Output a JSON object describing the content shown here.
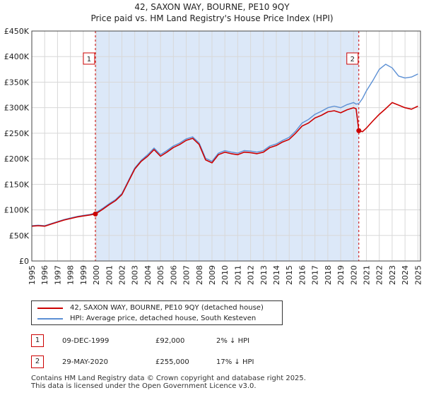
{
  "title_line1": "42, SAXON WAY, BOURNE, PE10 9QY",
  "title_line2": "Price paid vs. HM Land Registry's House Price Index (HPI)",
  "chart_data": {
    "type": "line",
    "title": "42, SAXON WAY, BOURNE, PE10 9QY",
    "subtitle": "Price paid vs. HM Land Registry's House Price Index (HPI)",
    "xlabel": "",
    "ylabel": "",
    "xlim": [
      1995,
      2025.2
    ],
    "ylim": [
      0,
      450000
    ],
    "x_ticks": [
      1995,
      1996,
      1997,
      1998,
      1999,
      2000,
      2001,
      2002,
      2003,
      2004,
      2005,
      2006,
      2007,
      2008,
      2009,
      2010,
      2011,
      2012,
      2013,
      2014,
      2015,
      2016,
      2017,
      2018,
      2019,
      2020,
      2021,
      2022,
      2023,
      2024,
      2025
    ],
    "y_ticks": [
      0,
      50000,
      100000,
      150000,
      200000,
      250000,
      300000,
      350000,
      400000,
      450000
    ],
    "y_tick_labels": [
      "£0",
      "£50K",
      "£100K",
      "£150K",
      "£200K",
      "£250K",
      "£300K",
      "£350K",
      "£400K",
      "£450K"
    ],
    "colors": {
      "property": "#cc0000",
      "hpi": "#5b8fd4",
      "shade": "#dce8f8",
      "marker_box": "#cc0000",
      "vline": "#cc0000"
    },
    "series": [
      {
        "name": "42, SAXON WAY, BOURNE, PE10 9QY (detached house)",
        "color": "#cc0000",
        "x": [
          1995.0,
          1995.5,
          1996.0,
          1996.5,
          1997.0,
          1997.5,
          1998.0,
          1998.5,
          1999.0,
          1999.5,
          1999.94,
          2000.5,
          2001.0,
          2001.5,
          2002.0,
          2002.5,
          2003.0,
          2003.5,
          2004.0,
          2004.5,
          2005.0,
          2005.5,
          2006.0,
          2006.5,
          2007.0,
          2007.5,
          2008.0,
          2008.5,
          2009.0,
          2009.5,
          2010.0,
          2010.5,
          2011.0,
          2011.5,
          2012.0,
          2012.5,
          2013.0,
          2013.5,
          2014.0,
          2014.5,
          2015.0,
          2015.5,
          2016.0,
          2016.5,
          2017.0,
          2017.5,
          2018.0,
          2018.5,
          2019.0,
          2019.5,
          2020.0,
          2020.2,
          2020.41,
          2020.7,
          2021.0,
          2021.5,
          2022.0,
          2022.5,
          2023.0,
          2023.5,
          2024.0,
          2024.5,
          2025.0
        ],
        "values": [
          68000,
          69000,
          68000,
          72000,
          76000,
          80000,
          83000,
          86000,
          88000,
          90000,
          92000,
          101000,
          110000,
          118000,
          130000,
          155000,
          180000,
          195000,
          205000,
          218000,
          205000,
          213000,
          222000,
          228000,
          236000,
          240000,
          228000,
          198000,
          192000,
          208000,
          213000,
          210000,
          208000,
          213000,
          212000,
          210000,
          213000,
          222000,
          226000,
          233000,
          238000,
          250000,
          264000,
          270000,
          280000,
          285000,
          292000,
          294000,
          290000,
          296000,
          300000,
          298000,
          255000,
          253000,
          260000,
          274000,
          287000,
          298000,
          310000,
          305000,
          300000,
          297000,
          303000
        ]
      },
      {
        "name": "HPI: Average price, detached house, South Kesteven",
        "color": "#5b8fd4",
        "x": [
          1995.0,
          1995.5,
          1996.0,
          1996.5,
          1997.0,
          1997.5,
          1998.0,
          1998.5,
          1999.0,
          1999.5,
          1999.94,
          2000.5,
          2001.0,
          2001.5,
          2002.0,
          2002.5,
          2003.0,
          2003.5,
          2004.0,
          2004.5,
          2005.0,
          2005.5,
          2006.0,
          2006.5,
          2007.0,
          2007.5,
          2008.0,
          2008.5,
          2009.0,
          2009.5,
          2010.0,
          2010.5,
          2011.0,
          2011.5,
          2012.0,
          2012.5,
          2013.0,
          2013.5,
          2014.0,
          2014.5,
          2015.0,
          2015.5,
          2016.0,
          2016.5,
          2017.0,
          2017.5,
          2018.0,
          2018.5,
          2019.0,
          2019.5,
          2020.0,
          2020.2,
          2020.41,
          2020.7,
          2021.0,
          2021.5,
          2022.0,
          2022.5,
          2023.0,
          2023.5,
          2024.0,
          2024.5,
          2025.0
        ],
        "values": [
          69000,
          70000,
          69000,
          73000,
          77000,
          81000,
          84000,
          87000,
          89000,
          91000,
          94000,
          103000,
          112000,
          120000,
          132000,
          157000,
          182000,
          197000,
          208000,
          221000,
          208000,
          216000,
          225000,
          231000,
          239000,
          243000,
          231000,
          201000,
          195000,
          211000,
          216000,
          213000,
          211000,
          216000,
          215000,
          213000,
          216000,
          225000,
          229000,
          236000,
          242000,
          254000,
          270000,
          277000,
          287000,
          293000,
          300000,
          303000,
          300000,
          306000,
          310000,
          307000,
          308000,
          318000,
          333000,
          353000,
          375000,
          385000,
          378000,
          362000,
          358000,
          360000,
          366000
        ]
      }
    ],
    "annotations": [
      {
        "label": "1",
        "x": 1999.94,
        "value": 92000
      },
      {
        "label": "2",
        "x": 2020.41,
        "value": 255000
      }
    ]
  },
  "legend": [
    {
      "label": "42, SAXON WAY, BOURNE, PE10 9QY (detached house)",
      "color": "#cc0000"
    },
    {
      "label": "HPI: Average price, detached house, South Kesteven",
      "color": "#5b8fd4"
    }
  ],
  "sales": [
    {
      "num": "1",
      "date": "09-DEC-1999",
      "price": "£92,000",
      "hpi": "2% ↓ HPI"
    },
    {
      "num": "2",
      "date": "29-MAY-2020",
      "price": "£255,000",
      "hpi": "17% ↓ HPI"
    }
  ],
  "footer_line1": "Contains HM Land Registry data © Crown copyright and database right 2025.",
  "footer_line2": "This data is licensed under the Open Government Licence v3.0."
}
